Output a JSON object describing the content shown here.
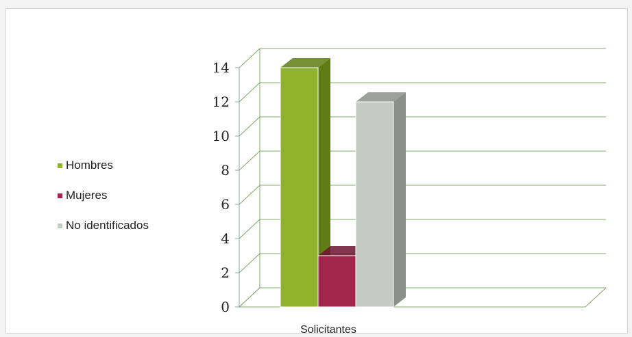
{
  "chart_data": {
    "type": "bar",
    "style": "3d-column",
    "categories": [
      "Solicitantes"
    ],
    "series": [
      {
        "name": "Hombres",
        "values": [
          14
        ],
        "color": "#8fb32c",
        "dark": "#5f7d14"
      },
      {
        "name": "Mujeres",
        "values": [
          3
        ],
        "color": "#a3264b",
        "dark": "#6b1430"
      },
      {
        "name": "No identificados",
        "values": [
          12
        ],
        "color": "#c4cac4",
        "dark": "#8a908a"
      }
    ],
    "ylim": [
      0,
      14
    ],
    "yticks": [
      "0",
      "2",
      "4",
      "6",
      "8",
      "10",
      "12",
      "14"
    ],
    "grid": true,
    "grid_color": "#7fa866",
    "legend_position": "left"
  }
}
